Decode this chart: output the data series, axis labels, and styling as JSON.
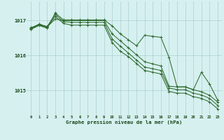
{
  "hours": [
    0,
    1,
    2,
    3,
    4,
    5,
    6,
    7,
    8,
    9,
    10,
    11,
    12,
    13,
    14,
    15,
    16,
    17,
    18,
    19,
    20,
    21,
    22,
    23
  ],
  "series": [
    [
      1016.8,
      1016.88,
      1016.82,
      1017.05,
      1017.0,
      1017.0,
      1017.0,
      1017.0,
      1017.0,
      1017.0,
      1016.62,
      1016.42,
      1016.22,
      1016.02,
      1015.82,
      1015.76,
      1015.7,
      1015.12,
      1015.1,
      1015.1,
      1015.02,
      1014.96,
      1014.86,
      1014.66
    ],
    [
      1016.78,
      1016.9,
      1016.83,
      1017.18,
      1016.97,
      1016.95,
      1016.95,
      1016.95,
      1016.95,
      1016.95,
      1016.47,
      1016.27,
      1016.07,
      1015.87,
      1015.67,
      1015.62,
      1015.57,
      1015.07,
      1015.02,
      1015.02,
      1014.92,
      1014.87,
      1014.77,
      1014.57
    ],
    [
      1016.77,
      1016.87,
      1016.81,
      1017.12,
      1016.92,
      1016.87,
      1016.87,
      1016.87,
      1016.87,
      1016.87,
      1016.37,
      1016.12,
      1015.97,
      1015.77,
      1015.57,
      1015.52,
      1015.47,
      1014.97,
      1014.92,
      1014.92,
      1014.82,
      1014.77,
      1014.67,
      1014.47
    ],
    [
      1016.75,
      1016.86,
      1016.78,
      1017.22,
      1017.02,
      1017.02,
      1017.02,
      1017.02,
      1017.02,
      1017.02,
      1016.85,
      1016.62,
      1016.45,
      1016.28,
      1016.58,
      1016.55,
      1016.52,
      1015.95,
      1015.1,
      1015.1,
      1015.02,
      1015.52,
      1015.18,
      1014.72
    ]
  ],
  "line_color": "#2d6a2d",
  "bg_color": "#d6f0f0",
  "grid_color": "#aacece",
  "text_color": "#1a4a1a",
  "xlabel": "Graphe pression niveau de la mer (hPa)",
  "ylim": [
    1014.3,
    1017.55
  ],
  "yticks": [
    1015,
    1016,
    1017
  ],
  "figsize": [
    3.2,
    2.0
  ],
  "dpi": 100
}
